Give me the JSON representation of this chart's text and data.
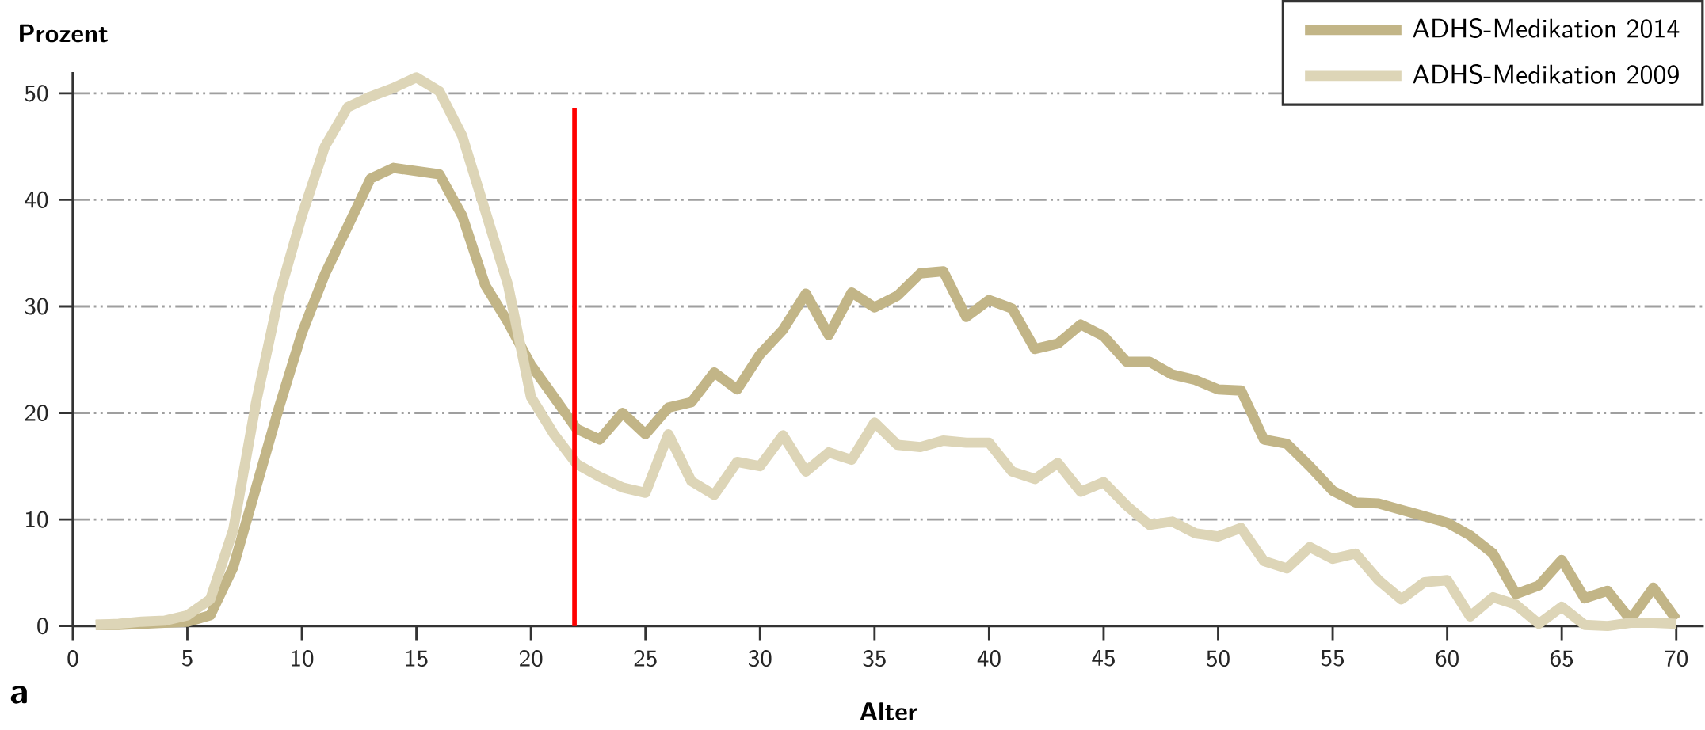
{
  "chart_data": {
    "type": "line",
    "xlabel": "Alter",
    "ylabel": "Prozent",
    "x": [
      1,
      2,
      3,
      4,
      5,
      6,
      7,
      8,
      9,
      10,
      11,
      12,
      13,
      14,
      15,
      16,
      17,
      18,
      19,
      20,
      21,
      22,
      23,
      24,
      25,
      26,
      27,
      28,
      29,
      30,
      31,
      32,
      33,
      34,
      35,
      36,
      37,
      38,
      39,
      40,
      41,
      42,
      43,
      44,
      45,
      46,
      47,
      48,
      49,
      50,
      51,
      52,
      53,
      54,
      55,
      56,
      57,
      58,
      59,
      60,
      61,
      62,
      63,
      64,
      65,
      66,
      67,
      68,
      69,
      70
    ],
    "series": [
      {
        "name": "ADHS-Medikation 2014",
        "color": "#c2b587",
        "values": [
          0.1,
          0.1,
          0.2,
          0.3,
          0.4,
          1,
          5.5,
          13,
          20.5,
          27.5,
          33,
          37.5,
          42,
          43,
          42.7,
          42.4,
          38.5,
          32,
          28.5,
          24.5,
          21.5,
          18.5,
          17.5,
          20,
          18,
          20.5,
          21,
          23.8,
          22.2,
          25.5,
          27.8,
          31.2,
          27.3,
          31.3,
          29.9,
          31,
          33.1,
          33.3,
          29,
          30.6,
          29.8,
          26,
          26.5,
          28.3,
          27.2,
          24.8,
          24.8,
          23.6,
          23.1,
          22.2,
          22.1,
          17.5,
          17.1,
          15,
          12.7,
          11.6,
          11.5,
          10.9,
          10.3,
          9.7,
          8.5,
          6.8,
          3,
          3.8,
          6.2,
          2.6,
          3.3,
          0.6,
          3.6,
          0.6
        ]
      },
      {
        "name": "ADHS-Medikation 2009",
        "color": "#ddd5b7",
        "values": [
          0.1,
          0.2,
          0.4,
          0.5,
          1,
          2.5,
          9,
          21,
          31,
          38.5,
          45,
          48.7,
          49.7,
          50.5,
          51.5,
          50.2,
          46,
          39,
          32,
          21.5,
          18,
          15.2,
          14,
          13,
          12.5,
          18,
          13.6,
          12.3,
          15.4,
          15,
          17.9,
          14.5,
          16.3,
          15.6,
          19.1,
          17,
          16.8,
          17.4,
          17.2,
          17.2,
          14.5,
          13.8,
          15.3,
          12.6,
          13.5,
          11.3,
          9.5,
          9.8,
          8.7,
          8.4,
          9.2,
          6.1,
          5.4,
          7.4,
          6.3,
          6.8,
          4.3,
          2.5,
          4.1,
          4.3,
          0.9,
          2.7,
          2,
          0.2,
          1.8,
          0.1,
          0,
          0.3,
          0.3,
          0.2
        ]
      }
    ],
    "xlim": [
      0,
      71.2
    ],
    "ylim": [
      0,
      52
    ],
    "xticks": [
      0,
      5,
      10,
      15,
      20,
      25,
      30,
      35,
      40,
      45,
      50,
      55,
      60,
      65,
      70
    ],
    "yticks": [
      0,
      10,
      20,
      30,
      40,
      50
    ],
    "grid": "y",
    "legend": "top right",
    "line_style": "solid",
    "ref_lines": [
      {
        "axis": "x",
        "value": 21.9,
        "color": "#ff0000"
      }
    ],
    "annotations": [
      "a"
    ]
  }
}
